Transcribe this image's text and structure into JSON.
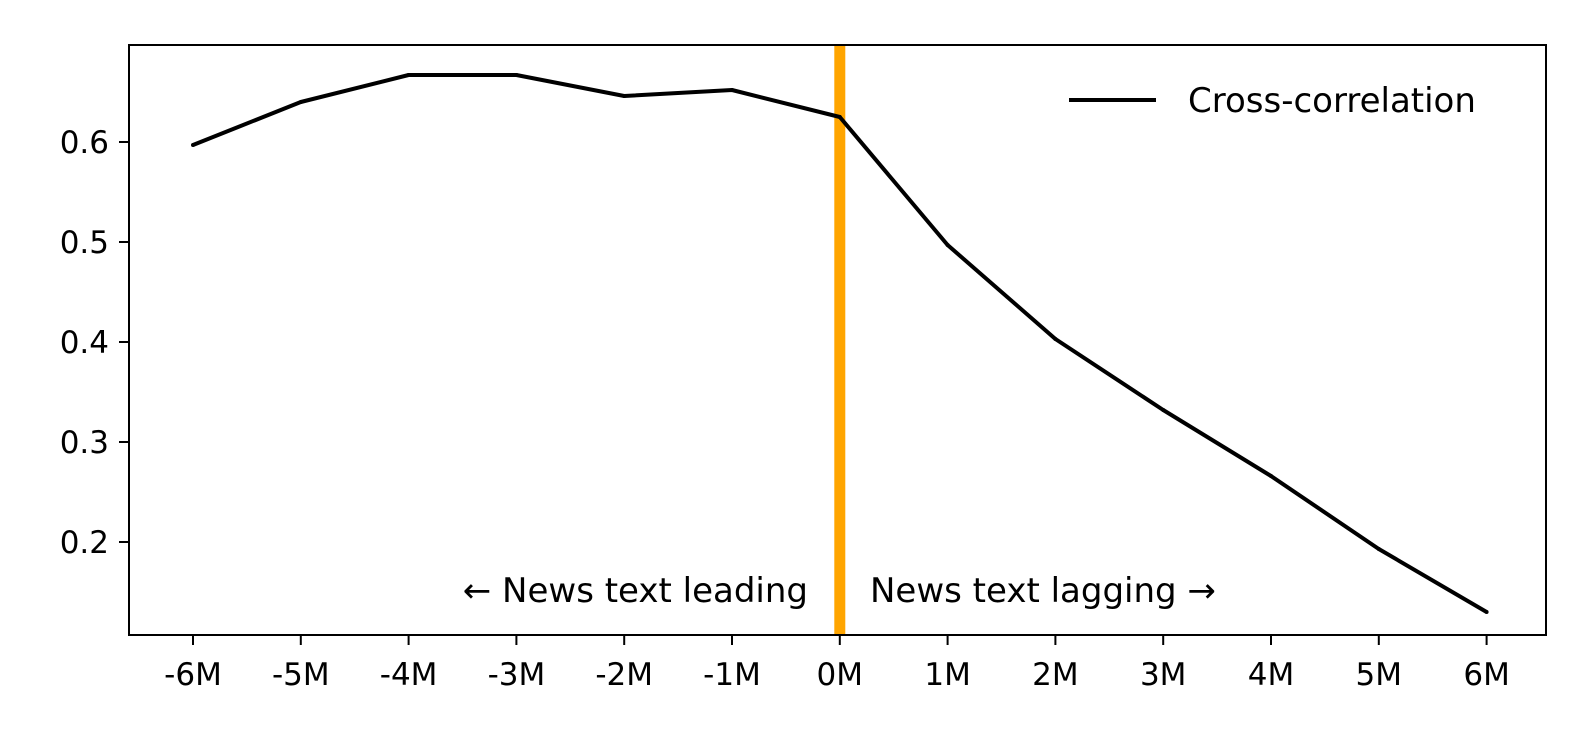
{
  "chart_data": {
    "type": "line",
    "x": [
      "-6M",
      "-5M",
      "-4M",
      "-3M",
      "-2M",
      "-1M",
      "0M",
      "1M",
      "2M",
      "3M",
      "4M",
      "5M",
      "6M"
    ],
    "series": [
      {
        "name": "Cross-correlation",
        "color": "#000000",
        "values": [
          0.597,
          0.64,
          0.667,
          0.667,
          0.646,
          0.652,
          0.625,
          0.497,
          0.403,
          0.332,
          0.266,
          0.193,
          0.13
        ]
      }
    ],
    "ylim": [
      0.107,
      0.697
    ],
    "yticks": [
      "0.2",
      "0.3",
      "0.4",
      "0.5",
      "0.6"
    ],
    "title": "",
    "xlabel": "",
    "ylabel": "",
    "grid": false,
    "legend_position": "top-right",
    "vline": {
      "x": "0M",
      "color": "#FFA500"
    },
    "annotations": {
      "left": "← News text leading",
      "right": "News text lagging →"
    }
  }
}
